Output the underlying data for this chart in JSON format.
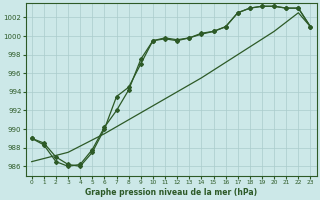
{
  "xlabel": "Graphe pression niveau de la mer (hPa)",
  "background_color": "#cce8e8",
  "grid_color": "#aacccc",
  "line_color": "#2d5a27",
  "xlim": [
    -0.5,
    23.5
  ],
  "ylim": [
    985.0,
    1003.5
  ],
  "yticks": [
    986,
    988,
    990,
    992,
    994,
    996,
    998,
    1000,
    1002
  ],
  "xticks": [
    0,
    1,
    2,
    3,
    4,
    5,
    6,
    7,
    8,
    9,
    10,
    11,
    12,
    13,
    14,
    15,
    16,
    17,
    18,
    19,
    20,
    21,
    22,
    23
  ],
  "series": [
    {
      "x": [
        0,
        3,
        6,
        10,
        14,
        17,
        20,
        22,
        23
      ],
      "y": [
        986.5,
        987.5,
        989.5,
        992.5,
        995.5,
        998.0,
        1000.5,
        1002.5,
        1001.0
      ]
    },
    {
      "x": [
        0,
        1,
        2,
        3,
        4,
        5,
        6,
        7,
        8,
        9,
        10,
        11,
        12,
        13,
        14,
        15,
        16,
        17,
        18,
        19,
        20,
        21,
        22,
        23
      ],
      "y": [
        989.0,
        988.5,
        987.0,
        986.2,
        986.0,
        987.5,
        990.0,
        993.5,
        994.5,
        997.0,
        999.5,
        999.8,
        999.6,
        999.8,
        1000.3,
        1000.5,
        1001.0,
        1002.5,
        1003.0,
        1003.2,
        1003.2,
        1003.0,
        1003.0,
        1001.0
      ]
    },
    {
      "x": [
        0,
        1,
        2,
        3,
        4,
        5,
        6,
        7,
        8,
        9,
        10,
        11,
        12,
        13,
        14,
        15,
        16,
        17,
        18,
        19,
        20,
        21,
        22,
        23
      ],
      "y": [
        989.0,
        988.3,
        986.5,
        986.0,
        986.2,
        987.8,
        990.2,
        992.0,
        994.2,
        997.5,
        999.5,
        999.7,
        999.5,
        999.8,
        1000.2,
        1000.5,
        1001.0,
        1002.5,
        1003.0,
        1003.2,
        1003.2,
        1003.0,
        1003.0,
        1001.0
      ]
    }
  ],
  "series_styles": [
    {
      "marker": null,
      "linewidth": 0.9,
      "markersize": 0
    },
    {
      "marker": "D",
      "linewidth": 0.9,
      "markersize": 2
    },
    {
      "marker": "D",
      "linewidth": 0.9,
      "markersize": 2
    }
  ]
}
